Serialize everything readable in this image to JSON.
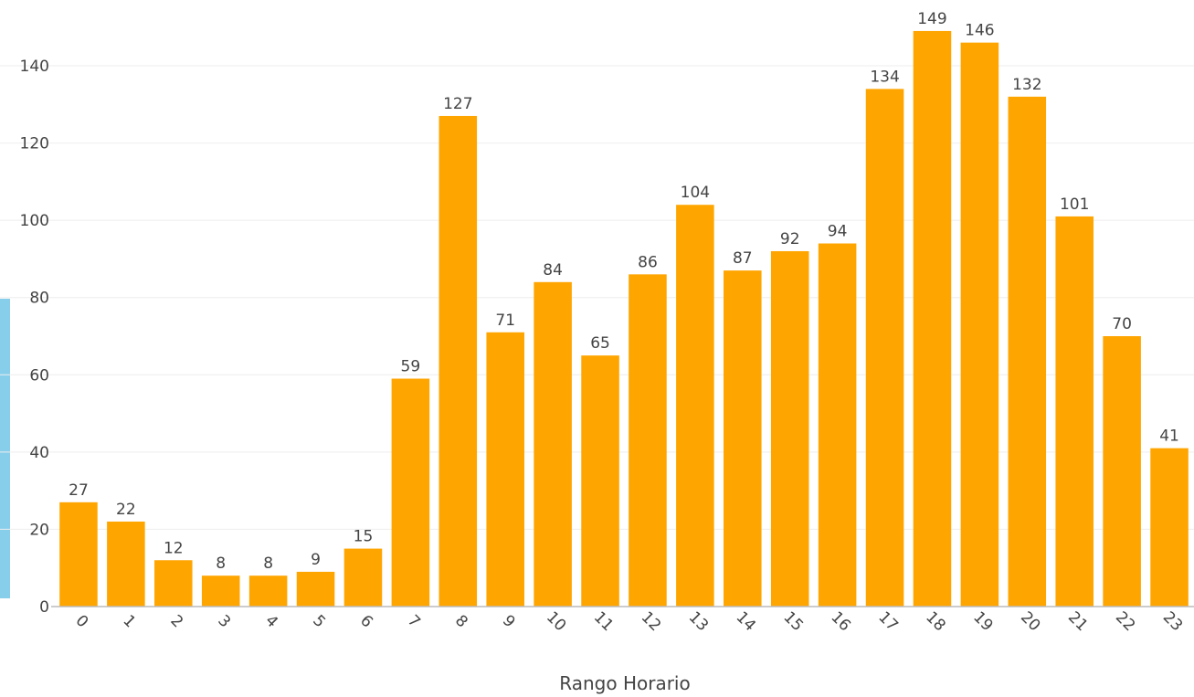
{
  "chart_data": {
    "type": "bar",
    "title": "",
    "xlabel": "Rango Horario",
    "ylabel": "",
    "categories": [
      "0",
      "1",
      "2",
      "3",
      "4",
      "5",
      "6",
      "7",
      "8",
      "9",
      "10",
      "11",
      "12",
      "13",
      "14",
      "15",
      "16",
      "17",
      "18",
      "19",
      "20",
      "21",
      "22",
      "23"
    ],
    "values": [
      27,
      22,
      12,
      8,
      8,
      9,
      15,
      59,
      127,
      71,
      84,
      65,
      86,
      104,
      87,
      92,
      94,
      134,
      149,
      146,
      132,
      101,
      70,
      41
    ],
    "ylim": [
      0,
      150
    ],
    "yticks": [
      0,
      20,
      40,
      60,
      80,
      100,
      120,
      140
    ],
    "grid": true,
    "legend": "none",
    "show_value_labels": true,
    "colors": {
      "bar": "#ffa500",
      "grid": "#eeeeee",
      "axis": "#bbbbbb",
      "text": "#444444",
      "side_strip": "#87ceeb"
    }
  }
}
